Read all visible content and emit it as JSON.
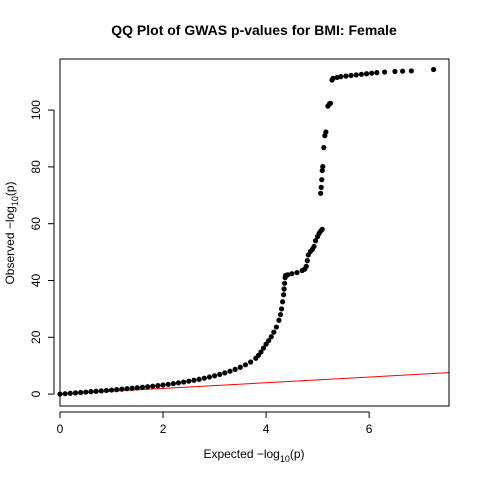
{
  "chart_data": {
    "type": "scatter",
    "title": "QQ Plot of GWAS p-values for BMI: Female",
    "xlabel": {
      "prefix": "Expected  −log",
      "sub": "10",
      "suffix": "(p)"
    },
    "ylabel": {
      "prefix": "Observed  −log",
      "sub": "10",
      "suffix": "(p)"
    },
    "xlim": [
      0,
      7.55
    ],
    "ylim": [
      -4.2,
      118
    ],
    "x_ticks": [
      0,
      2,
      4,
      6
    ],
    "y_ticks": [
      0,
      20,
      40,
      60,
      80,
      100
    ],
    "grid": false,
    "legend": "none",
    "colors": {
      "points": "#000000",
      "reference_line": "#ff0000",
      "axes": "#000000"
    },
    "reference_line": {
      "slope": 1,
      "intercept": 0
    },
    "series": [
      {
        "points": [
          [
            0.0,
            0.0
          ],
          [
            0.1,
            0.14
          ],
          [
            0.2,
            0.28
          ],
          [
            0.3,
            0.42
          ],
          [
            0.4,
            0.56
          ],
          [
            0.5,
            0.7
          ],
          [
            0.6,
            0.85
          ],
          [
            0.7,
            0.99
          ],
          [
            0.8,
            1.13
          ],
          [
            0.9,
            1.27
          ],
          [
            1.0,
            1.42
          ],
          [
            1.1,
            1.57
          ],
          [
            1.2,
            1.73
          ],
          [
            1.3,
            1.89
          ],
          [
            1.4,
            2.05
          ],
          [
            1.5,
            2.22
          ],
          [
            1.6,
            2.4
          ],
          [
            1.7,
            2.58
          ],
          [
            1.8,
            2.78
          ],
          [
            1.9,
            2.98
          ],
          [
            2.0,
            3.2
          ],
          [
            2.1,
            3.43
          ],
          [
            2.2,
            3.68
          ],
          [
            2.3,
            3.94
          ],
          [
            2.4,
            4.23
          ],
          [
            2.5,
            4.53
          ],
          [
            2.6,
            4.86
          ],
          [
            2.7,
            5.21
          ],
          [
            2.8,
            5.59
          ],
          [
            2.9,
            6.0
          ],
          [
            3.0,
            6.45
          ],
          [
            3.1,
            6.94
          ],
          [
            3.2,
            7.47
          ],
          [
            3.3,
            8.05
          ],
          [
            3.4,
            8.7
          ],
          [
            3.5,
            9.45
          ],
          [
            3.6,
            10.3
          ],
          [
            3.7,
            11.3
          ],
          [
            3.8,
            12.6
          ],
          [
            3.85,
            13.6
          ],
          [
            3.9,
            14.8
          ],
          [
            3.95,
            16.2
          ],
          [
            4.0,
            17.6
          ],
          [
            4.05,
            18.8
          ],
          [
            4.1,
            20.2
          ],
          [
            4.15,
            21.8
          ],
          [
            4.2,
            23.6
          ],
          [
            4.25,
            26.0
          ],
          [
            4.28,
            28.0
          ],
          [
            4.3,
            30.0
          ],
          [
            4.32,
            32.5
          ],
          [
            4.34,
            35.0
          ],
          [
            4.35,
            37.0
          ],
          [
            4.36,
            39.0
          ],
          [
            4.37,
            41.0
          ],
          [
            4.38,
            41.8
          ],
          [
            4.42,
            42.0
          ],
          [
            4.5,
            42.4
          ],
          [
            4.6,
            42.8
          ],
          [
            4.7,
            43.5
          ],
          [
            4.75,
            44.0
          ],
          [
            4.78,
            45.0
          ],
          [
            4.8,
            47.0
          ],
          [
            4.82,
            49.0
          ],
          [
            4.86,
            50.2
          ],
          [
            4.9,
            51.0
          ],
          [
            4.93,
            52.0
          ],
          [
            4.96,
            54.0
          ],
          [
            5.0,
            55.5
          ],
          [
            5.03,
            56.6
          ],
          [
            5.06,
            57.4
          ],
          [
            5.09,
            58.0
          ],
          [
            5.06,
            70.7
          ],
          [
            5.07,
            72.8
          ],
          [
            5.08,
            75.5
          ],
          [
            5.09,
            78.7
          ],
          [
            5.1,
            80.1
          ],
          [
            5.12,
            86.8
          ],
          [
            5.14,
            91.0
          ],
          [
            5.16,
            92.3
          ],
          [
            5.2,
            101.4
          ],
          [
            5.23,
            102.2
          ],
          [
            5.25,
            102.4
          ],
          [
            5.28,
            110.6
          ],
          [
            5.3,
            111.2
          ],
          [
            5.38,
            111.5
          ],
          [
            5.45,
            111.8
          ],
          [
            5.55,
            112.0
          ],
          [
            5.65,
            112.2
          ],
          [
            5.75,
            112.4
          ],
          [
            5.85,
            112.6
          ],
          [
            5.95,
            112.8
          ],
          [
            6.05,
            113.0
          ],
          [
            6.15,
            113.2
          ],
          [
            6.3,
            113.4
          ],
          [
            6.5,
            113.6
          ],
          [
            6.65,
            113.7
          ],
          [
            6.82,
            113.8
          ],
          [
            7.25,
            114.3
          ]
        ]
      }
    ]
  }
}
